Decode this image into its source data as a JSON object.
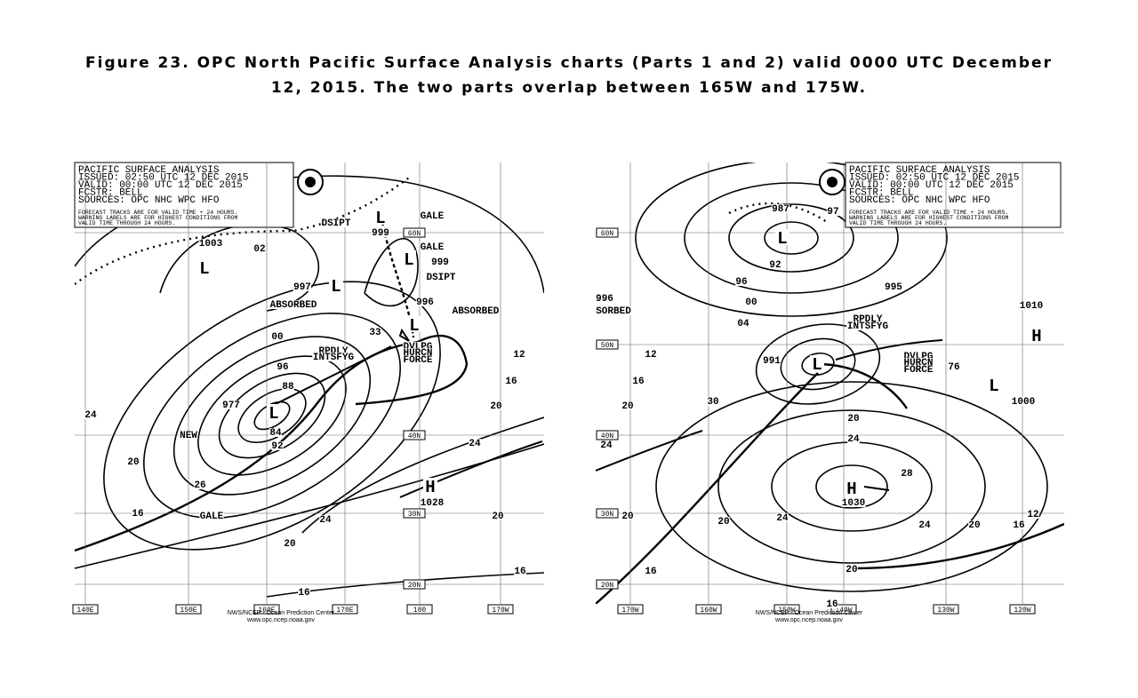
{
  "caption": [
    "Figure 23.  OPC North Pacific Surface Analysis charts (Parts 1 and 2) valid 0000 UTC December",
    "12, 2015.  The two parts overlap between 165W and 175W."
  ],
  "maps": [
    {
      "header": [
        "PACIFIC SURFACE ANALYSIS",
        "ISSUED: 02:50 UTC 12 DEC 2015",
        "VALID:  00:00 UTC 12 DEC 2015",
        "FCSTR:  BELL",
        "SOURCES:  OPC NHC WPC HFO"
      ],
      "warning": [
        "FORECAST TRACKS ARE FOR VALID TIME + 24 HOURS.",
        "WARNING LABELS ARE FOR HIGHEST CONDITIONS FROM",
        "VALID TIME THROUGH 24 HOURS."
      ],
      "longitudes": [
        "140E",
        "150E",
        "160E",
        "170E",
        "180",
        "170W"
      ],
      "latitudes": [
        "60N",
        "40N",
        "30N",
        "20N"
      ],
      "labels": [
        "1003",
        "02",
        "DSIPT",
        "999",
        "GALE",
        "GALE",
        "999",
        "DSIPT",
        "997",
        "ABSORBED",
        "996",
        "ABSORBED",
        "33",
        "RPDLY",
        "INTSFYG",
        "DVLPG",
        "HURCN",
        "FORCE",
        "977",
        "NEW",
        "26",
        "GALE",
        "H",
        "1028",
        "00",
        "96",
        "88",
        "84",
        "92",
        "24",
        "20",
        "16",
        "12",
        "20",
        "24",
        "20",
        "16",
        "16",
        "16",
        "20",
        "24",
        "L",
        "L",
        "L",
        "L",
        "L",
        "L"
      ],
      "credit": [
        "NWS/NCEP - Ocean Prediction Center",
        "www.opc.ncep.noaa.gov"
      ]
    },
    {
      "header": [
        "PACIFIC SURFACE ANALYSIS",
        "ISSUED: 02:50 UTC 12 DEC 2015",
        "VALID:  00:00 UTC 12 DEC 2015",
        "FCSTR:  BELL",
        "SOURCES:  OPC NHC WPC HFO"
      ],
      "warning": [
        "FORECAST TRACKS ARE FOR VALID TIME + 24 HOURS.",
        "WARNING LABELS ARE FOR HIGHEST CONDITIONS FROM",
        "VALID TIME THROUGH 24 HOURS."
      ],
      "longitudes": [
        "170W",
        "160W",
        "150W",
        "140W",
        "130W",
        "120W"
      ],
      "latitudes": [
        "60N",
        "50N",
        "40N",
        "30N",
        "20N"
      ],
      "labels": [
        "987",
        "97",
        "92",
        "96",
        "995",
        "00",
        "04",
        "SORBED",
        "996",
        "RPDLY",
        "INTSFYG",
        "991",
        "DVLPG",
        "HURCN",
        "FORCE",
        "76",
        "1010",
        "H",
        "1000",
        "30",
        "28",
        "H",
        "1030",
        "24",
        "20",
        "12",
        "16",
        "20",
        "24",
        "20",
        "20",
        "24",
        "24",
        "20",
        "16",
        "12",
        "20",
        "16",
        "16",
        "L",
        "L",
        "L"
      ],
      "credit": [
        "NWS/NCEP - Ocean Prediction Center",
        "www.opc.ncep.noaa.gov"
      ]
    }
  ]
}
